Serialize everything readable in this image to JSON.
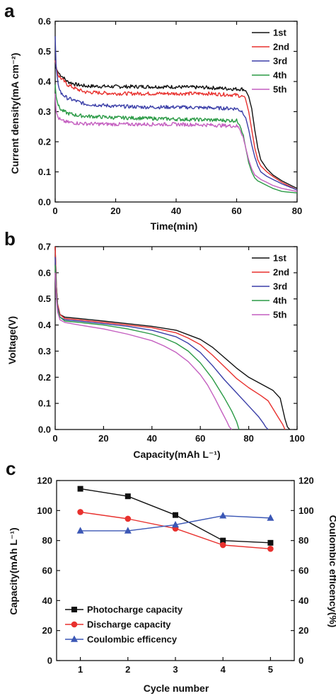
{
  "chart_data": [
    {
      "panel": "a",
      "type": "line",
      "xlabel": "Time(min)",
      "ylabel": "Current density(mA cm⁻²)",
      "xlim": [
        0,
        80
      ],
      "ylim": [
        0,
        0.6
      ],
      "xticks": [
        0,
        20,
        40,
        60,
        80
      ],
      "yticks": [
        0.0,
        0.1,
        0.2,
        0.3,
        0.4,
        0.5,
        0.6
      ],
      "tick_decimals_y": 1,
      "tick_decimals_x": 0,
      "legend_position": "top-right",
      "noisy": true,
      "series": [
        {
          "name": "1st",
          "color": "#111111",
          "x": [
            0,
            0.5,
            1,
            2,
            4,
            7,
            10,
            20,
            30,
            40,
            50,
            60,
            62,
            63,
            64,
            65,
            66,
            67,
            68,
            70,
            72,
            75,
            80
          ],
          "y": [
            0.45,
            0.44,
            0.43,
            0.42,
            0.4,
            0.39,
            0.385,
            0.383,
            0.383,
            0.382,
            0.38,
            0.375,
            0.375,
            0.37,
            0.35,
            0.31,
            0.24,
            0.18,
            0.14,
            0.11,
            0.09,
            0.07,
            0.045
          ]
        },
        {
          "name": "2nd",
          "color": "#e8312e",
          "x": [
            0,
            0.5,
            1,
            2,
            4,
            7,
            10,
            20,
            30,
            40,
            50,
            60,
            62,
            63,
            64,
            65,
            66,
            67,
            68,
            70,
            72,
            75,
            80
          ],
          "y": [
            0.47,
            0.44,
            0.42,
            0.41,
            0.39,
            0.375,
            0.365,
            0.36,
            0.36,
            0.36,
            0.36,
            0.355,
            0.35,
            0.34,
            0.3,
            0.24,
            0.18,
            0.14,
            0.12,
            0.1,
            0.085,
            0.065,
            0.04
          ]
        },
        {
          "name": "3rd",
          "color": "#3b3fa8",
          "x": [
            0,
            0.3,
            1,
            2,
            4,
            7,
            10,
            20,
            30,
            40,
            50,
            60,
            62,
            63,
            64,
            65,
            66,
            67,
            68,
            70,
            72,
            75,
            80
          ],
          "y": [
            0.55,
            0.45,
            0.39,
            0.36,
            0.345,
            0.335,
            0.325,
            0.318,
            0.315,
            0.315,
            0.313,
            0.31,
            0.3,
            0.28,
            0.24,
            0.19,
            0.15,
            0.12,
            0.1,
            0.085,
            0.075,
            0.06,
            0.04
          ]
        },
        {
          "name": "4th",
          "color": "#2a9a45",
          "x": [
            0,
            0.3,
            1,
            2,
            4,
            7,
            10,
            20,
            30,
            40,
            50,
            60,
            61,
            62,
            63,
            64,
            65,
            66,
            67,
            70,
            72,
            75,
            80
          ],
          "y": [
            0.39,
            0.35,
            0.32,
            0.305,
            0.295,
            0.288,
            0.285,
            0.28,
            0.278,
            0.275,
            0.273,
            0.27,
            0.26,
            0.23,
            0.18,
            0.13,
            0.1,
            0.08,
            0.07,
            0.055,
            0.045,
            0.035,
            0.03
          ]
        },
        {
          "name": "5th",
          "color": "#c45fc0",
          "x": [
            0,
            0.3,
            1,
            2,
            4,
            7,
            10,
            20,
            30,
            40,
            50,
            60,
            61,
            62,
            63,
            64,
            65,
            66,
            68,
            70,
            72,
            75,
            80
          ],
          "y": [
            0.36,
            0.3,
            0.28,
            0.27,
            0.265,
            0.262,
            0.26,
            0.258,
            0.258,
            0.258,
            0.256,
            0.252,
            0.245,
            0.22,
            0.18,
            0.14,
            0.11,
            0.09,
            0.075,
            0.065,
            0.055,
            0.045,
            0.035
          ]
        }
      ]
    },
    {
      "panel": "b",
      "type": "line",
      "xlabel": "Capacity(mAh L⁻¹)",
      "ylabel": "Voltage(V)",
      "xlim": [
        0,
        100
      ],
      "ylim": [
        0,
        0.7
      ],
      "xticks": [
        0,
        20,
        40,
        60,
        80,
        100
      ],
      "yticks": [
        0.0,
        0.1,
        0.2,
        0.3,
        0.4,
        0.5,
        0.6,
        0.7
      ],
      "tick_decimals_y": 1,
      "tick_decimals_x": 0,
      "legend_position": "top-right",
      "noisy": false,
      "series": [
        {
          "name": "1st",
          "color": "#111111",
          "x": [
            0,
            0.5,
            1,
            2,
            4,
            10,
            20,
            30,
            40,
            50,
            60,
            65,
            70,
            75,
            80,
            85,
            90,
            93,
            94,
            95,
            96,
            97
          ],
          "y": [
            0.7,
            0.55,
            0.48,
            0.44,
            0.43,
            0.425,
            0.415,
            0.405,
            0.395,
            0.38,
            0.345,
            0.315,
            0.275,
            0.235,
            0.2,
            0.175,
            0.15,
            0.12,
            0.08,
            0.04,
            0.01,
            0.0
          ]
        },
        {
          "name": "2nd",
          "color": "#e8312e",
          "x": [
            0,
            0.5,
            1,
            2,
            4,
            10,
            20,
            30,
            40,
            50,
            55,
            60,
            65,
            70,
            75,
            80,
            85,
            88,
            90,
            92,
            94,
            95
          ],
          "y": [
            0.7,
            0.55,
            0.48,
            0.44,
            0.425,
            0.42,
            0.41,
            0.4,
            0.39,
            0.37,
            0.35,
            0.325,
            0.285,
            0.24,
            0.195,
            0.16,
            0.13,
            0.11,
            0.08,
            0.05,
            0.02,
            0.0
          ]
        },
        {
          "name": "3rd",
          "color": "#3b3fa8",
          "x": [
            0,
            0.5,
            1,
            2,
            4,
            10,
            20,
            30,
            40,
            50,
            55,
            60,
            65,
            70,
            75,
            80,
            84,
            86,
            87,
            88
          ],
          "y": [
            0.66,
            0.53,
            0.47,
            0.43,
            0.42,
            0.415,
            0.405,
            0.395,
            0.38,
            0.355,
            0.33,
            0.295,
            0.245,
            0.19,
            0.14,
            0.09,
            0.05,
            0.025,
            0.01,
            0.0
          ]
        },
        {
          "name": "4th",
          "color": "#2a9a45",
          "x": [
            0,
            0.5,
            1,
            2,
            4,
            10,
            20,
            30,
            40,
            45,
            50,
            55,
            60,
            65,
            70,
            73,
            75,
            76
          ],
          "y": [
            0.63,
            0.52,
            0.46,
            0.43,
            0.415,
            0.41,
            0.4,
            0.385,
            0.365,
            0.35,
            0.33,
            0.3,
            0.255,
            0.195,
            0.12,
            0.07,
            0.03,
            0.0
          ]
        },
        {
          "name": "5th",
          "color": "#c45fc0",
          "x": [
            0,
            0.5,
            1,
            2,
            4,
            10,
            20,
            30,
            40,
            45,
            50,
            55,
            60,
            63,
            66,
            69,
            71,
            72,
            73
          ],
          "y": [
            0.6,
            0.5,
            0.45,
            0.42,
            0.41,
            0.4,
            0.385,
            0.365,
            0.34,
            0.32,
            0.295,
            0.26,
            0.21,
            0.17,
            0.12,
            0.065,
            0.03,
            0.01,
            0.0
          ]
        }
      ]
    },
    {
      "panel": "c",
      "type": "line",
      "xlabel": "Cycle number",
      "ylabel": "Capacity(mAh L⁻¹)",
      "y2label": "Coulombic efficency(%)",
      "xlim": [
        0.5,
        5.5
      ],
      "ylim": [
        0,
        120
      ],
      "y2lim": [
        0,
        120
      ],
      "xticks": [
        1,
        2,
        3,
        4,
        5
      ],
      "yticks": [
        0,
        20,
        40,
        60,
        80,
        100,
        120
      ],
      "y2ticks": [
        0,
        20,
        40,
        60,
        80,
        100,
        120
      ],
      "legend_position": "bottom-left",
      "series": [
        {
          "name": "Photocharge capacity",
          "axis": "left",
          "marker": "square",
          "color": "#111111",
          "x": [
            1,
            2,
            3,
            4,
            5
          ],
          "y": [
            114.5,
            109.5,
            97,
            80,
            78.5
          ]
        },
        {
          "name": "Discharge capacity",
          "axis": "left",
          "marker": "circle",
          "color": "#e8312e",
          "x": [
            1,
            2,
            3,
            4,
            5
          ],
          "y": [
            99,
            94.5,
            88,
            77,
            74.5
          ]
        },
        {
          "name": "Coulombic efficency",
          "axis": "right",
          "marker": "triangle",
          "color": "#3b57b5",
          "x": [
            1,
            2,
            3,
            4,
            5
          ],
          "y": [
            86.5,
            86.5,
            90.5,
            96.5,
            95
          ]
        }
      ]
    }
  ],
  "panels": {
    "a": {
      "letter": "a",
      "xlabel": "Time(min)",
      "ylabel": "Current density(mA cm⁻²)"
    },
    "b": {
      "letter": "b",
      "xlabel": "Capacity(mAh L⁻¹)",
      "ylabel": "Voltage(V)"
    },
    "c": {
      "letter": "c",
      "xlabel": "Cycle number",
      "ylabel": "Capacity(mAh L⁻¹)",
      "y2label": "Coulombic efficency(%)"
    }
  }
}
